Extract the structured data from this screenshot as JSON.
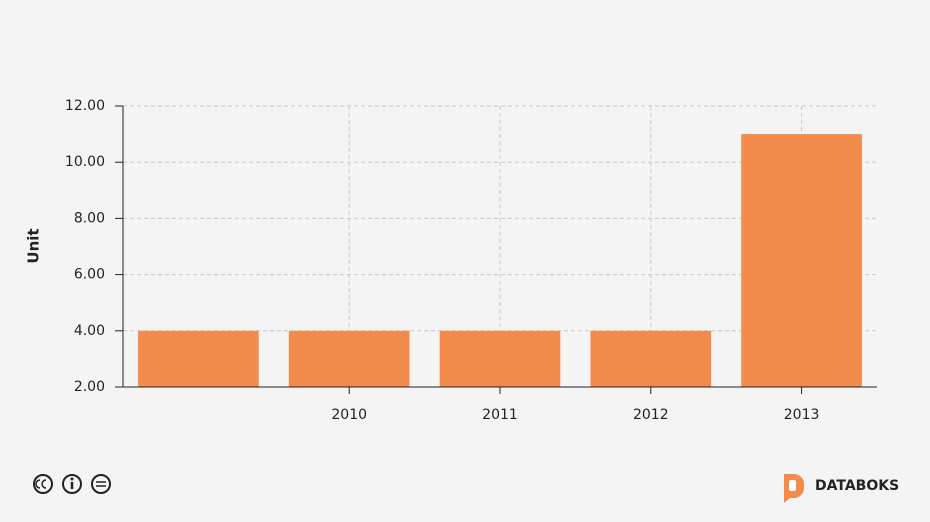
{
  "chart_data": {
    "type": "bar",
    "y_label": "Unit",
    "categories": [
      null,
      "2010",
      "2011",
      "2012",
      "2013"
    ],
    "values": [
      4,
      4,
      4,
      4,
      11
    ],
    "color": "#f28b4c",
    "ylim": [
      2,
      12
    ],
    "yticks": [
      {
        "value": 2,
        "label": "2.00"
      },
      {
        "value": 4,
        "label": "4.00"
      },
      {
        "value": 6,
        "label": "6.00"
      },
      {
        "value": 8,
        "label": "8.00"
      },
      {
        "value": 10,
        "label": "10.00"
      },
      {
        "value": 12,
        "label": "12.00"
      }
    ],
    "grid": true
  },
  "footer": {
    "brand": "DATABOKS"
  }
}
